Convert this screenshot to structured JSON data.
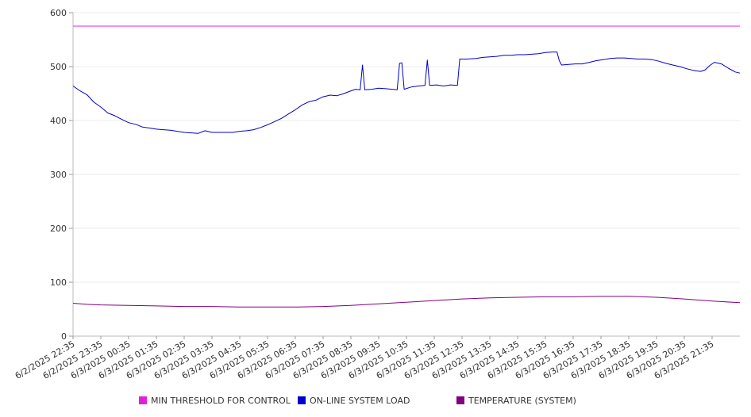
{
  "chart_data": {
    "type": "line",
    "title": "",
    "xlabel": "",
    "ylabel": "",
    "ylim": [
      0,
      600
    ],
    "y_ticks": [
      0,
      100,
      200,
      300,
      400,
      500,
      600
    ],
    "grid": "horizontal",
    "legend_position": "bottom",
    "x_tick_labels": [
      "6/2/2025 22:35",
      "6/2/2025 23:35",
      "6/3/2025 00:35",
      "6/3/2025 01:35",
      "6/3/2025 02:35",
      "6/3/2025 03:35",
      "6/3/2025 04:35",
      "6/3/2025 05:35",
      "6/3/2025 06:35",
      "6/3/2025 07:35",
      "6/3/2025 08:35",
      "6/3/2025 09:35",
      "6/3/2025 10:35",
      "6/3/2025 11:35",
      "6/3/2025 12:35",
      "6/3/2025 13:35",
      "6/3/2025 14:35",
      "6/3/2025 15:35",
      "6/3/2025 16:35",
      "6/3/2025 17:35",
      "6/3/2025 18:35",
      "6/3/2025 19:35",
      "6/3/2025 20:35",
      "6/3/2025 21:35"
    ],
    "series": [
      {
        "name": "MIN THRESHOLD FOR CONTROL",
        "color": "#e020e0",
        "points": [
          [
            "6/2/2025 22:35",
            575
          ],
          [
            "6/3/2025 22:35",
            575
          ]
        ]
      },
      {
        "name": "ON-LINE SYSTEM LOAD",
        "color": "#0000cc",
        "points": [
          [
            "6/2/2025 22:35",
            464
          ],
          [
            "6/2/2025 22:50",
            455
          ],
          [
            "6/2/2025 23:05",
            448
          ],
          [
            "6/2/2025 23:20",
            434
          ],
          [
            "6/2/2025 23:35",
            425
          ],
          [
            "6/2/2025 23:50",
            414
          ],
          [
            "6/3/2025 00:05",
            409
          ],
          [
            "6/3/2025 00:20",
            402
          ],
          [
            "6/3/2025 00:35",
            396
          ],
          [
            "6/3/2025 00:50",
            393
          ],
          [
            "6/3/2025 01:05",
            388
          ],
          [
            "6/3/2025 01:20",
            386
          ],
          [
            "6/3/2025 01:35",
            384
          ],
          [
            "6/3/2025 01:50",
            383
          ],
          [
            "6/3/2025 02:05",
            382
          ],
          [
            "6/3/2025 02:20",
            380
          ],
          [
            "6/3/2025 02:35",
            378
          ],
          [
            "6/3/2025 02:50",
            377
          ],
          [
            "6/3/2025 03:05",
            376
          ],
          [
            "6/3/2025 03:20",
            381
          ],
          [
            "6/3/2025 03:35",
            378
          ],
          [
            "6/3/2025 03:50",
            378
          ],
          [
            "6/3/2025 04:05",
            378
          ],
          [
            "6/3/2025 04:20",
            378
          ],
          [
            "6/3/2025 04:35",
            380
          ],
          [
            "6/3/2025 04:50",
            381
          ],
          [
            "6/3/2025 05:05",
            383
          ],
          [
            "6/3/2025 05:20",
            387
          ],
          [
            "6/3/2025 05:35",
            392
          ],
          [
            "6/3/2025 05:50",
            398
          ],
          [
            "6/3/2025 06:05",
            404
          ],
          [
            "6/3/2025 06:20",
            412
          ],
          [
            "6/3/2025 06:35",
            420
          ],
          [
            "6/3/2025 06:50",
            429
          ],
          [
            "6/3/2025 07:05",
            435
          ],
          [
            "6/3/2025 07:20",
            438
          ],
          [
            "6/3/2025 07:35",
            444
          ],
          [
            "6/3/2025 07:50",
            447
          ],
          [
            "6/3/2025 08:05",
            446
          ],
          [
            "6/3/2025 08:20",
            450
          ],
          [
            "6/3/2025 08:35",
            455
          ],
          [
            "6/3/2025 08:45",
            458
          ],
          [
            "6/3/2025 08:55",
            457
          ],
          [
            "6/3/2025 09:00",
            503
          ],
          [
            "6/3/2025 09:05",
            457
          ],
          [
            "6/3/2025 09:20",
            458
          ],
          [
            "6/3/2025 09:35",
            460
          ],
          [
            "6/3/2025 09:50",
            459
          ],
          [
            "6/3/2025 10:05",
            458
          ],
          [
            "6/3/2025 10:15",
            457
          ],
          [
            "6/3/2025 10:20",
            506
          ],
          [
            "6/3/2025 10:25",
            507
          ],
          [
            "6/3/2025 10:30",
            458
          ],
          [
            "6/3/2025 10:45",
            462
          ],
          [
            "6/3/2025 11:00",
            464
          ],
          [
            "6/3/2025 11:15",
            465
          ],
          [
            "6/3/2025 11:20",
            512
          ],
          [
            "6/3/2025 11:25",
            465
          ],
          [
            "6/3/2025 11:40",
            466
          ],
          [
            "6/3/2025 11:55",
            464
          ],
          [
            "6/3/2025 12:10",
            466
          ],
          [
            "6/3/2025 12:25",
            465
          ],
          [
            "6/3/2025 12:30",
            514
          ],
          [
            "6/3/2025 12:45",
            514
          ],
          [
            "6/3/2025 13:05",
            515
          ],
          [
            "6/3/2025 13:20",
            517
          ],
          [
            "6/3/2025 13:35",
            518
          ],
          [
            "6/3/2025 13:50",
            519
          ],
          [
            "6/3/2025 14:05",
            521
          ],
          [
            "6/3/2025 14:20",
            521
          ],
          [
            "6/3/2025 14:35",
            522
          ],
          [
            "6/3/2025 14:50",
            522
          ],
          [
            "6/3/2025 15:05",
            523
          ],
          [
            "6/3/2025 15:20",
            524
          ],
          [
            "6/3/2025 15:35",
            526
          ],
          [
            "6/3/2025 15:50",
            527
          ],
          [
            "6/3/2025 16:00",
            527
          ],
          [
            "6/3/2025 16:05",
            511
          ],
          [
            "6/3/2025 16:10",
            503
          ],
          [
            "6/3/2025 16:25",
            504
          ],
          [
            "6/3/2025 16:40",
            505
          ],
          [
            "6/3/2025 16:55",
            505
          ],
          [
            "6/3/2025 17:10",
            508
          ],
          [
            "6/3/2025 17:25",
            511
          ],
          [
            "6/3/2025 17:40",
            513
          ],
          [
            "6/3/2025 17:55",
            515
          ],
          [
            "6/3/2025 18:10",
            516
          ],
          [
            "6/3/2025 18:25",
            516
          ],
          [
            "6/3/2025 18:40",
            515
          ],
          [
            "6/3/2025 18:55",
            514
          ],
          [
            "6/3/2025 19:10",
            514
          ],
          [
            "6/3/2025 19:25",
            513
          ],
          [
            "6/3/2025 19:40",
            510
          ],
          [
            "6/3/2025 19:55",
            506
          ],
          [
            "6/3/2025 20:10",
            503
          ],
          [
            "6/3/2025 20:25",
            500
          ],
          [
            "6/3/2025 20:40",
            496
          ],
          [
            "6/3/2025 20:55",
            493
          ],
          [
            "6/3/2025 21:10",
            491
          ],
          [
            "6/3/2025 21:20",
            494
          ],
          [
            "6/3/2025 21:30",
            502
          ],
          [
            "6/3/2025 21:40",
            508
          ],
          [
            "6/3/2025 21:55",
            505
          ],
          [
            "6/3/2025 22:10",
            497
          ],
          [
            "6/3/2025 22:25",
            490
          ],
          [
            "6/3/2025 22:35",
            488
          ]
        ]
      },
      {
        "name": "TEMPERATURE (SYSTEM)",
        "color": "#800080",
        "points": [
          [
            "6/2/2025 22:35",
            61
          ],
          [
            "6/2/2025 23:05",
            59
          ],
          [
            "6/2/2025 23:35",
            58
          ],
          [
            "6/3/2025 00:35",
            57
          ],
          [
            "6/3/2025 01:35",
            56
          ],
          [
            "6/3/2025 02:35",
            55
          ],
          [
            "6/3/2025 03:35",
            55
          ],
          [
            "6/3/2025 04:35",
            54
          ],
          [
            "6/3/2025 05:35",
            54
          ],
          [
            "6/3/2025 06:35",
            54
          ],
          [
            "6/3/2025 07:35",
            55
          ],
          [
            "6/3/2025 08:35",
            57
          ],
          [
            "6/3/2025 09:35",
            60
          ],
          [
            "6/3/2025 10:35",
            63
          ],
          [
            "6/3/2025 11:35",
            66
          ],
          [
            "6/3/2025 12:35",
            69
          ],
          [
            "6/3/2025 13:35",
            71
          ],
          [
            "6/3/2025 14:35",
            72
          ],
          [
            "6/3/2025 15:35",
            73
          ],
          [
            "6/3/2025 16:35",
            73
          ],
          [
            "6/3/2025 17:35",
            74
          ],
          [
            "6/3/2025 18:35",
            74
          ],
          [
            "6/3/2025 19:35",
            72
          ],
          [
            "6/3/2025 20:35",
            69
          ],
          [
            "6/3/2025 21:35",
            65
          ],
          [
            "6/3/2025 22:35",
            62
          ]
        ]
      }
    ]
  }
}
